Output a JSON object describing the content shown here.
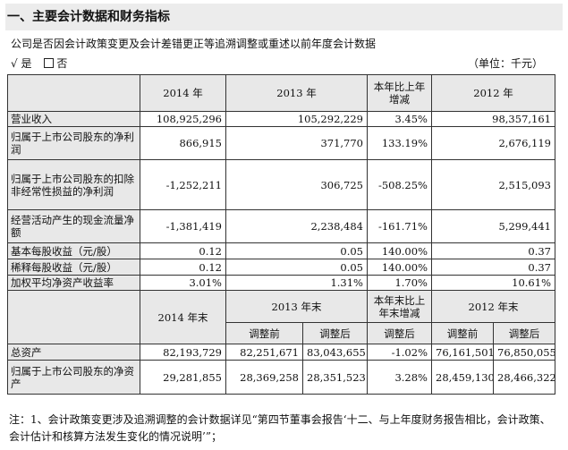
{
  "section_title": "一、主要会计数据和财务指标",
  "notice": "公司是否因会计政策变更及会计差错更正等追溯调整或重述以前年度会计数据",
  "options": {
    "check": "√",
    "yes": "是",
    "no": "否"
  },
  "unit": "（单位：千元）",
  "table1": {
    "headers": [
      "2014 年",
      "2013 年",
      "本年比上年增减",
      "2012 年"
    ],
    "rows": [
      {
        "label": "营业收入",
        "y2014": "108,925,296",
        "y2013": "105,292,229",
        "change": "3.45%",
        "y2012": "98,357,161"
      },
      {
        "label": "归属于上市公司股东的净利润",
        "y2014": "866,915",
        "y2013": "371,770",
        "change": "133.19%",
        "y2012": "2,676,119"
      },
      {
        "label": "归属于上市公司股东的扣除非经常性损益的净利润",
        "y2014": "-1,252,211",
        "y2013": "306,725",
        "change": "-508.25%",
        "y2012": "2,515,093"
      },
      {
        "label": "经营活动产生的现金流量净额",
        "y2014": "-1,381,419",
        "y2013": "2,238,484",
        "change": "-161.71%",
        "y2012": "5,299,441"
      },
      {
        "label": "基本每股收益（元/股）",
        "y2014": "0.12",
        "y2013": "0.05",
        "change": "140.00%",
        "y2012": "0.37"
      },
      {
        "label": "稀释每股收益（元/股）",
        "y2014": "0.12",
        "y2013": "0.05",
        "change": "140.00%",
        "y2012": "0.37"
      },
      {
        "label": "加权平均净资产收益率",
        "y2014": "3.01%",
        "y2013": "1.31%",
        "change": "1.70%",
        "y2012": "10.61%"
      }
    ]
  },
  "table2": {
    "headers": [
      "2014 年末",
      "2013 年末",
      "本年末比上年末增减",
      "2012 年末"
    ],
    "subheaders": [
      "调整前",
      "调整后",
      "调整后",
      "调整前",
      "调整后"
    ],
    "rows": [
      {
        "label": "总资产",
        "y2014": "82,193,729",
        "y2013_before": "82,251,671",
        "y2013_after": "83,043,655",
        "change": "-1.02%",
        "y2012_before": "76,161,501",
        "y2012_after": "76,850,055"
      },
      {
        "label": "归属于上市公司股东的净资产",
        "y2014": "29,281,855",
        "y2013_before": "28,369,258",
        "y2013_after": "28,351,523",
        "change": "3.28%",
        "y2012_before": "28,459,130",
        "y2012_after": "28,466,322"
      }
    ]
  },
  "footnote": "注：1、会计政策变更涉及追溯调整的会计数据详见“第四节董事会报告‘十二、与上年度财务报告相比，会计政策、会计估计和核算方法发生变化的情况说明’”；"
}
